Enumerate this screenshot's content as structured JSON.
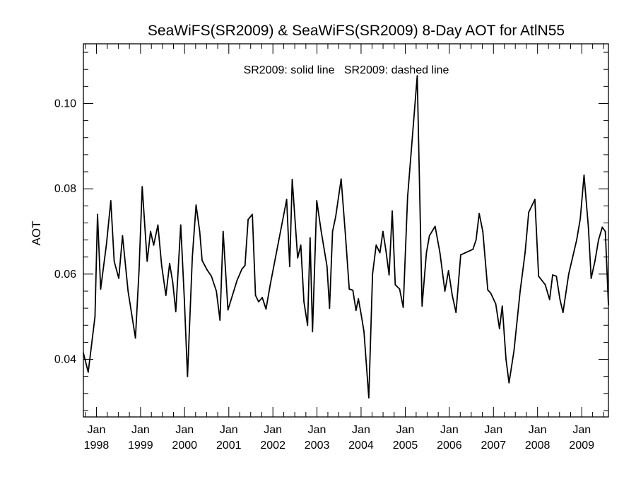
{
  "chart_data": {
    "type": "line",
    "title": "SeaWiFS(SR2009) & SeaWiFS(SR2009) 8-Day AOT for AtlN55",
    "annotation": "SR2009: solid line   SR2009: dashed line",
    "xlabel": "",
    "ylabel": "AOT",
    "xlim": [
      "1997-09-15",
      "2009-08-10"
    ],
    "ylim": [
      0.0265,
      0.114
    ],
    "grid": false,
    "legend": "none",
    "x_ticks": [
      {
        "date": "1998-01-01",
        "label1": "Jan",
        "label2": "1998"
      },
      {
        "date": "1999-01-01",
        "label1": "Jan",
        "label2": "1999"
      },
      {
        "date": "2000-01-01",
        "label1": "Jan",
        "label2": "2000"
      },
      {
        "date": "2001-01-01",
        "label1": "Jan",
        "label2": "2001"
      },
      {
        "date": "2002-01-01",
        "label1": "Jan",
        "label2": "2002"
      },
      {
        "date": "2003-01-01",
        "label1": "Jan",
        "label2": "2003"
      },
      {
        "date": "2004-01-01",
        "label1": "Jan",
        "label2": "2004"
      },
      {
        "date": "2005-01-01",
        "label1": "Jan",
        "label2": "2005"
      },
      {
        "date": "2006-01-01",
        "label1": "Jan",
        "label2": "2006"
      },
      {
        "date": "2007-01-01",
        "label1": "Jan",
        "label2": "2007"
      },
      {
        "date": "2008-01-01",
        "label1": "Jan",
        "label2": "2008"
      },
      {
        "date": "2009-01-01",
        "label1": "Jan",
        "label2": "2009"
      }
    ],
    "y_ticks": [
      {
        "value": 0.04,
        "label": "0.04"
      },
      {
        "value": 0.06,
        "label": "0.06"
      },
      {
        "value": 0.08,
        "label": "0.08"
      },
      {
        "value": 0.1,
        "label": "0.10"
      }
    ],
    "series": [
      {
        "style": "solid",
        "color": "#000000",
        "points": [
          [
            "1997-09-15",
            0.0415
          ],
          [
            "1997-10-25",
            0.037
          ],
          [
            "1997-12-20",
            0.05
          ],
          [
            "1998-01-10",
            0.074
          ],
          [
            "1998-02-05",
            0.0565
          ],
          [
            "1998-03-25",
            0.067
          ],
          [
            "1998-04-30",
            0.0772
          ],
          [
            "1998-05-28",
            0.063
          ],
          [
            "1998-07-05",
            0.059
          ],
          [
            "1998-08-05",
            0.069
          ],
          [
            "1998-09-20",
            0.056
          ],
          [
            "1998-11-20",
            0.045
          ],
          [
            "1998-12-20",
            0.061
          ],
          [
            "1999-01-15",
            0.0805
          ],
          [
            "1999-02-25",
            0.063
          ],
          [
            "1999-03-25",
            0.07
          ],
          [
            "1999-04-20",
            0.0668
          ],
          [
            "1999-05-25",
            0.0715
          ],
          [
            "1999-06-25",
            0.062
          ],
          [
            "1999-07-30",
            0.055
          ],
          [
            "1999-08-30",
            0.0625
          ],
          [
            "1999-09-25",
            0.058
          ],
          [
            "1999-10-20",
            0.0512
          ],
          [
            "1999-11-30",
            0.0715
          ],
          [
            "1999-12-30",
            0.054
          ],
          [
            "2000-01-25",
            0.036
          ],
          [
            "2000-03-05",
            0.064
          ],
          [
            "2000-04-05",
            0.0762
          ],
          [
            "2000-05-05",
            0.07
          ],
          [
            "2000-05-25",
            0.0632
          ],
          [
            "2000-07-05",
            0.061
          ],
          [
            "2000-08-10",
            0.0595
          ],
          [
            "2000-09-20",
            0.056
          ],
          [
            "2000-10-20",
            0.0492
          ],
          [
            "2000-11-15",
            0.07
          ],
          [
            "2000-12-25",
            0.0516
          ],
          [
            "2001-03-10",
            0.0585
          ],
          [
            "2001-04-20",
            0.0612
          ],
          [
            "2001-05-15",
            0.062
          ],
          [
            "2001-06-10",
            0.0728
          ],
          [
            "2001-07-15",
            0.074
          ],
          [
            "2001-08-10",
            0.055
          ],
          [
            "2001-09-05",
            0.0535
          ],
          [
            "2001-10-05",
            0.0545
          ],
          [
            "2001-11-05",
            0.0518
          ],
          [
            "2001-12-10",
            0.0575
          ],
          [
            "2002-04-25",
            0.0775
          ],
          [
            "2002-05-20",
            0.0618
          ],
          [
            "2002-06-10",
            0.0822
          ],
          [
            "2002-07-25",
            0.0638
          ],
          [
            "2002-08-20",
            0.0668
          ],
          [
            "2002-09-15",
            0.0535
          ],
          [
            "2002-10-15",
            0.048
          ],
          [
            "2002-11-05",
            0.0685
          ],
          [
            "2002-11-25",
            0.0465
          ],
          [
            "2002-12-30",
            0.0772
          ],
          [
            "2003-02-05",
            0.07
          ],
          [
            "2003-03-25",
            0.0618
          ],
          [
            "2003-04-15",
            0.052
          ],
          [
            "2003-05-10",
            0.07
          ],
          [
            "2003-06-05",
            0.0735
          ],
          [
            "2003-07-20",
            0.0823
          ],
          [
            "2003-08-25",
            0.069
          ],
          [
            "2003-09-25",
            0.0565
          ],
          [
            "2003-10-25",
            0.0562
          ],
          [
            "2003-11-20",
            0.0515
          ],
          [
            "2003-12-10",
            0.0542
          ],
          [
            "2004-01-05",
            0.05
          ],
          [
            "2004-01-25",
            0.0465
          ],
          [
            "2004-03-05",
            0.031
          ],
          [
            "2004-04-05",
            0.06
          ],
          [
            "2004-05-05",
            0.0668
          ],
          [
            "2004-06-05",
            0.065
          ],
          [
            "2004-06-30",
            0.07
          ],
          [
            "2004-07-25",
            0.0655
          ],
          [
            "2004-08-20",
            0.0598
          ],
          [
            "2004-09-15",
            0.0748
          ],
          [
            "2004-10-10",
            0.0575
          ],
          [
            "2004-11-15",
            0.0565
          ],
          [
            "2004-12-15",
            0.0522
          ],
          [
            "2005-01-20",
            0.078
          ],
          [
            "2005-04-10",
            0.1065
          ],
          [
            "2005-05-20",
            0.0525
          ],
          [
            "2005-06-25",
            0.065
          ],
          [
            "2005-07-20",
            0.069
          ],
          [
            "2005-09-05",
            0.0712
          ],
          [
            "2005-10-15",
            0.065
          ],
          [
            "2005-11-25",
            0.056
          ],
          [
            "2005-12-25",
            0.0608
          ],
          [
            "2006-01-25",
            0.055
          ],
          [
            "2006-02-25",
            0.051
          ],
          [
            "2006-04-05",
            0.0645
          ],
          [
            "2006-07-15",
            0.0658
          ],
          [
            "2006-08-10",
            0.068
          ],
          [
            "2006-09-05",
            0.0742
          ],
          [
            "2006-10-05",
            0.07
          ],
          [
            "2006-11-15",
            0.0563
          ],
          [
            "2006-12-10",
            0.0555
          ],
          [
            "2007-01-20",
            0.053
          ],
          [
            "2007-02-20",
            0.0472
          ],
          [
            "2007-03-15",
            0.0525
          ],
          [
            "2007-04-15",
            0.04
          ],
          [
            "2007-05-10",
            0.0345
          ],
          [
            "2007-06-20",
            0.042
          ],
          [
            "2007-08-10",
            0.056
          ],
          [
            "2007-09-20",
            0.065
          ],
          [
            "2007-10-20",
            0.0745
          ],
          [
            "2007-12-10",
            0.0775
          ],
          [
            "2008-01-10",
            0.0595
          ],
          [
            "2008-03-05",
            0.0575
          ],
          [
            "2008-04-10",
            0.054
          ],
          [
            "2008-05-05",
            0.0598
          ],
          [
            "2008-06-05",
            0.0595
          ],
          [
            "2008-07-05",
            0.054
          ],
          [
            "2008-07-30",
            0.051
          ],
          [
            "2008-08-25",
            0.056
          ],
          [
            "2008-09-15",
            0.06
          ],
          [
            "2008-11-20",
            0.068
          ],
          [
            "2008-12-20",
            0.073
          ],
          [
            "2009-01-20",
            0.0832
          ],
          [
            "2009-02-25",
            0.071
          ],
          [
            "2009-03-20",
            0.059
          ],
          [
            "2009-04-20",
            0.063
          ],
          [
            "2009-05-20",
            0.068
          ],
          [
            "2009-06-20",
            0.071
          ],
          [
            "2009-07-15",
            0.07
          ],
          [
            "2009-08-10",
            0.0528
          ]
        ]
      }
    ]
  }
}
